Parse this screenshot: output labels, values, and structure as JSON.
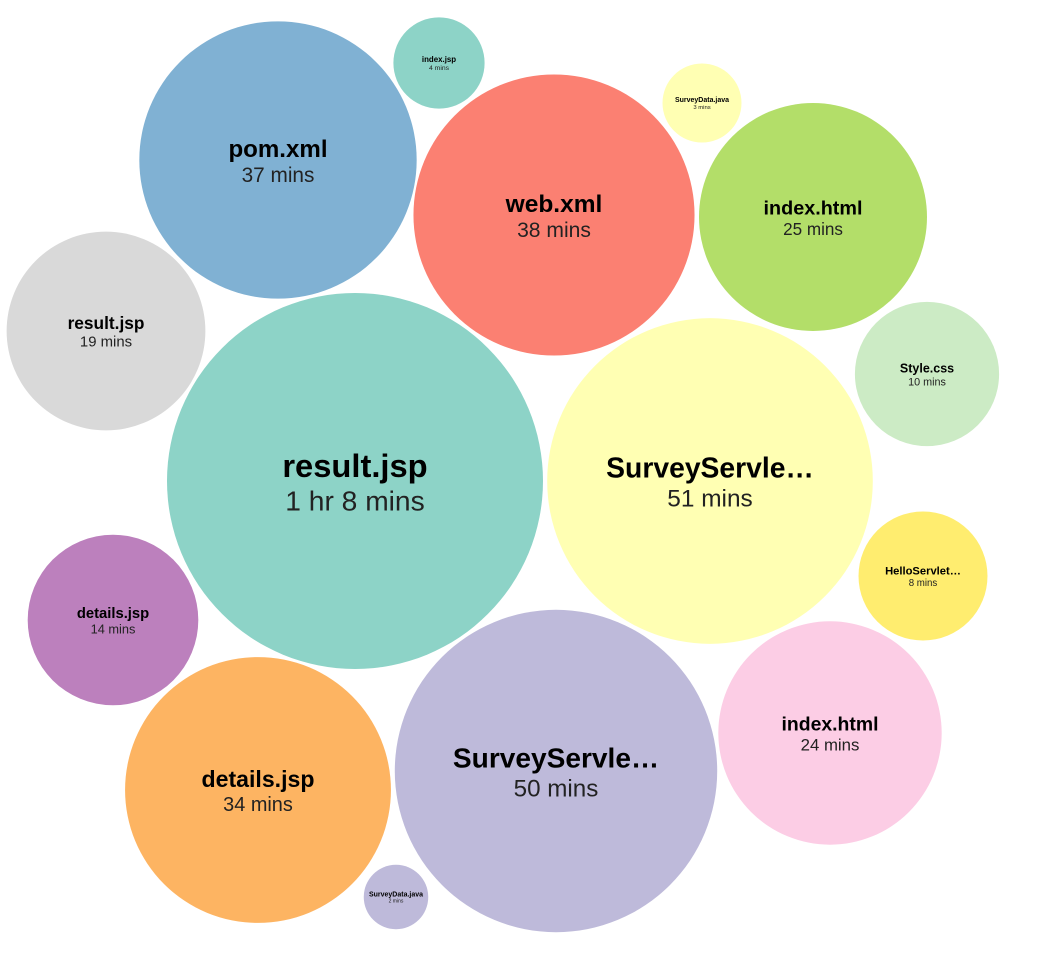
{
  "chart_data": {
    "type": "bubble",
    "items": [
      {
        "name": "result.jsp",
        "duration": "1 hr 8 mins",
        "minutes": 68,
        "color": "#8dd3c7"
      },
      {
        "name": "SurveyServle…",
        "duration": "51 mins",
        "minutes": 51,
        "color": "#ffffb3"
      },
      {
        "name": "SurveyServle…",
        "duration": "50 mins",
        "minutes": 50,
        "color": "#bebada"
      },
      {
        "name": "web.xml",
        "duration": "38 mins",
        "minutes": 38,
        "color": "#fb8072"
      },
      {
        "name": "pom.xml",
        "duration": "37 mins",
        "minutes": 37,
        "color": "#80b1d3"
      },
      {
        "name": "details.jsp",
        "duration": "34 mins",
        "minutes": 34,
        "color": "#fdb462"
      },
      {
        "name": "index.html",
        "duration": "25 mins",
        "minutes": 25,
        "color": "#b3de69"
      },
      {
        "name": "index.html",
        "duration": "24 mins",
        "minutes": 24,
        "color": "#fccde5"
      },
      {
        "name": "result.jsp",
        "duration": "19 mins",
        "minutes": 19,
        "color": "#d9d9d9"
      },
      {
        "name": "details.jsp",
        "duration": "14 mins",
        "minutes": 14,
        "color": "#bc80bd"
      },
      {
        "name": "Style.css",
        "duration": "10 mins",
        "minutes": 10,
        "color": "#ccebc5"
      },
      {
        "name": "HelloServlet…",
        "duration": "8 mins",
        "minutes": 8,
        "color": "#ffed6f"
      },
      {
        "name": "index.jsp",
        "duration": "4 mins",
        "minutes": 4,
        "color": "#8dd3c7"
      },
      {
        "name": "SurveyData.java",
        "duration": "3 mins",
        "minutes": 3,
        "color": "#ffffb3"
      },
      {
        "name": "SurveyData.java",
        "duration": "2 mins",
        "minutes": 2,
        "color": "#bebada"
      }
    ]
  }
}
